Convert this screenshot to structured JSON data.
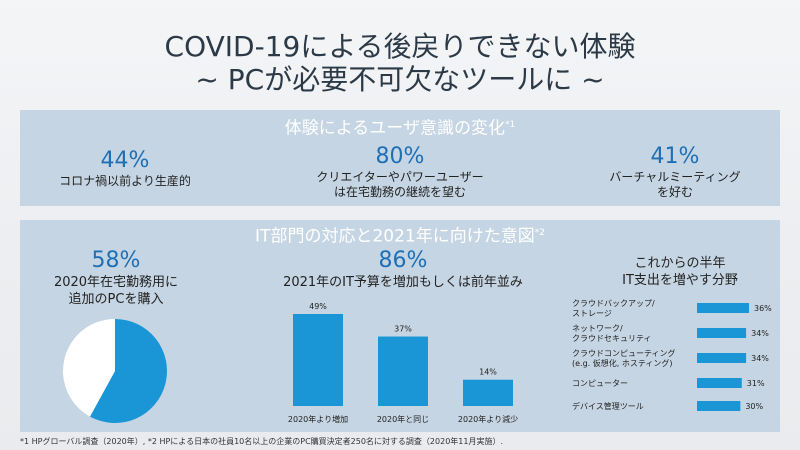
{
  "title": {
    "line1": "COVID-19による後戻りできない体験",
    "line2": "~ PCが必要不可欠なツールに ~"
  },
  "section1": {
    "heading": "体験によるユーザ意識の変化",
    "heading_note": "*1",
    "stats": [
      {
        "pct": "44%",
        "desc1": "コロナ禍以前より生産的",
        "desc2": ""
      },
      {
        "pct": "80%",
        "desc1": "クリエイターやパワーユーザー",
        "desc2": "は在宅勤務の継続を望む"
      },
      {
        "pct": "41%",
        "desc1": "バーチャルミーティング",
        "desc2": "を好む"
      }
    ]
  },
  "section2": {
    "heading": "IT部門の対応と2021年に向けた意図",
    "heading_note": "*2",
    "pie": {
      "pct": "58%",
      "desc1": "2020年在宅勤務用に",
      "desc2": "追加のPCを購入"
    },
    "bars": {
      "pct": "86%",
      "desc": "2021年のIT予算を増加もしくは前年並み"
    },
    "hbars": {
      "head1": "これからの半年",
      "head2": "IT支出を増やす分野"
    }
  },
  "chart_data": [
    {
      "type": "pie",
      "title": "",
      "slices": [
        {
          "label": "",
          "value": 58,
          "color": "#1a95d6"
        },
        {
          "label": "",
          "value": 42,
          "color": "#ffffff"
        }
      ]
    },
    {
      "type": "bar",
      "title": "",
      "categories": [
        "2020年より増加",
        "2020年と同じ",
        "2020年より減少"
      ],
      "values": [
        49,
        37,
        14
      ],
      "value_labels": [
        "49%",
        "37%",
        "14%"
      ],
      "ylim": [
        0,
        49
      ],
      "color": "#1a95d6"
    },
    {
      "type": "bar",
      "orientation": "horizontal",
      "title": "",
      "categories": [
        [
          "クラウドバックアップ/",
          "ストレージ"
        ],
        [
          "ネットワーク/",
          "クラウドセキュリティ"
        ],
        [
          "クラウドコンピューティング",
          "(e.g. 仮想化, ホスティング)"
        ],
        [
          "コンピューター"
        ],
        [
          "デバイス管理ツール"
        ]
      ],
      "values": [
        36,
        34,
        34,
        31,
        30
      ],
      "value_labels": [
        "36%",
        "34%",
        "34%",
        "31%",
        "30%"
      ],
      "xlim": [
        0,
        36
      ],
      "color": "#1a95d6"
    }
  ],
  "footnote": "*1 HPグローバル調査（2020年）, *2 HPによる日本の社員10名以上の企業のPC購買決定者250名に対する調査（2020年11月実施）."
}
